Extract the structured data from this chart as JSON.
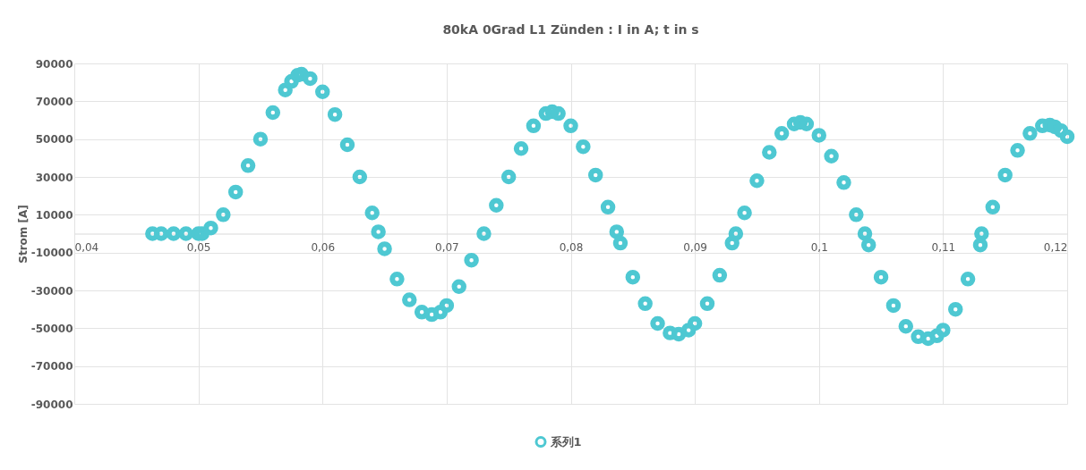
{
  "chart_data": {
    "type": "scatter",
    "title": "80kA 0Grad L1 Zünden : I in A; t in s",
    "ylabel": "Strom [A]",
    "xlim": [
      0.04,
      0.12
    ],
    "ylim": [
      -90000,
      90000
    ],
    "xticks": [
      {
        "value": 0.04,
        "label": "0,04"
      },
      {
        "value": 0.05,
        "label": "0,05"
      },
      {
        "value": 0.06,
        "label": "0,06"
      },
      {
        "value": 0.07,
        "label": "0,07"
      },
      {
        "value": 0.08,
        "label": "0,08"
      },
      {
        "value": 0.09,
        "label": "0,09"
      },
      {
        "value": 0.1,
        "label": "0,1"
      },
      {
        "value": 0.11,
        "label": "0,11"
      },
      {
        "value": 0.12,
        "label": "0,12"
      }
    ],
    "yticks": [
      -90000,
      -70000,
      -50000,
      -30000,
      -10000,
      10000,
      30000,
      50000,
      70000,
      90000
    ],
    "grid": true,
    "legend": "bottom",
    "marker": "circle",
    "x": [
      0.0463,
      0.047,
      0.048,
      0.049,
      0.05,
      0.0503,
      0.051,
      0.052,
      0.053,
      0.054,
      0.055,
      0.056,
      0.057,
      0.0575,
      0.058,
      0.0583,
      0.059,
      0.06,
      0.061,
      0.062,
      0.063,
      0.064,
      0.0645,
      0.065,
      0.066,
      0.067,
      0.068,
      0.0688,
      0.0695,
      0.07,
      0.071,
      0.072,
      0.073,
      0.074,
      0.075,
      0.076,
      0.077,
      0.078,
      0.0785,
      0.079,
      0.08,
      0.081,
      0.082,
      0.083,
      0.0837,
      0.084,
      0.085,
      0.086,
      0.087,
      0.088,
      0.0887,
      0.0895,
      0.09,
      0.091,
      0.092,
      0.093,
      0.0933,
      0.094,
      0.095,
      0.096,
      0.097,
      0.098,
      0.0985,
      0.099,
      0.1,
      0.101,
      0.102,
      0.103,
      0.1037,
      0.104,
      0.105,
      0.106,
      0.107,
      0.108,
      0.1088,
      0.1095,
      0.11,
      0.111,
      0.112,
      0.113,
      0.1131,
      0.114,
      0.115,
      0.116,
      0.117,
      0.118,
      0.1186,
      0.119,
      0.1195,
      0.12
    ],
    "series": [
      {
        "name": "系列1",
        "color": "#4ec8d2",
        "values": [
          0,
          0,
          0,
          0,
          0,
          0,
          3000,
          10000,
          22000,
          36000,
          50000,
          64000,
          76000,
          80500,
          83800,
          84300,
          82000,
          75000,
          63000,
          47000,
          30000,
          11000,
          1000,
          -8000,
          -24000,
          -35000,
          -41500,
          -42800,
          -41500,
          -38000,
          -28000,
          -14000,
          0,
          15000,
          30000,
          45000,
          57000,
          63500,
          64500,
          63500,
          57000,
          46000,
          31000,
          14000,
          1000,
          -5000,
          -23000,
          -37000,
          -47500,
          -52500,
          -53100,
          -51000,
          -47500,
          -37000,
          -22000,
          -5000,
          0,
          11000,
          28000,
          43000,
          53000,
          58000,
          58800,
          58000,
          52000,
          41000,
          27000,
          10000,
          0,
          -6000,
          -23000,
          -38000,
          -49000,
          -54500,
          -55500,
          -54000,
          -51000,
          -40000,
          -24000,
          -6000,
          0,
          14000,
          31000,
          44000,
          53000,
          57000,
          57400,
          56500,
          54500,
          51300
        ]
      }
    ]
  }
}
